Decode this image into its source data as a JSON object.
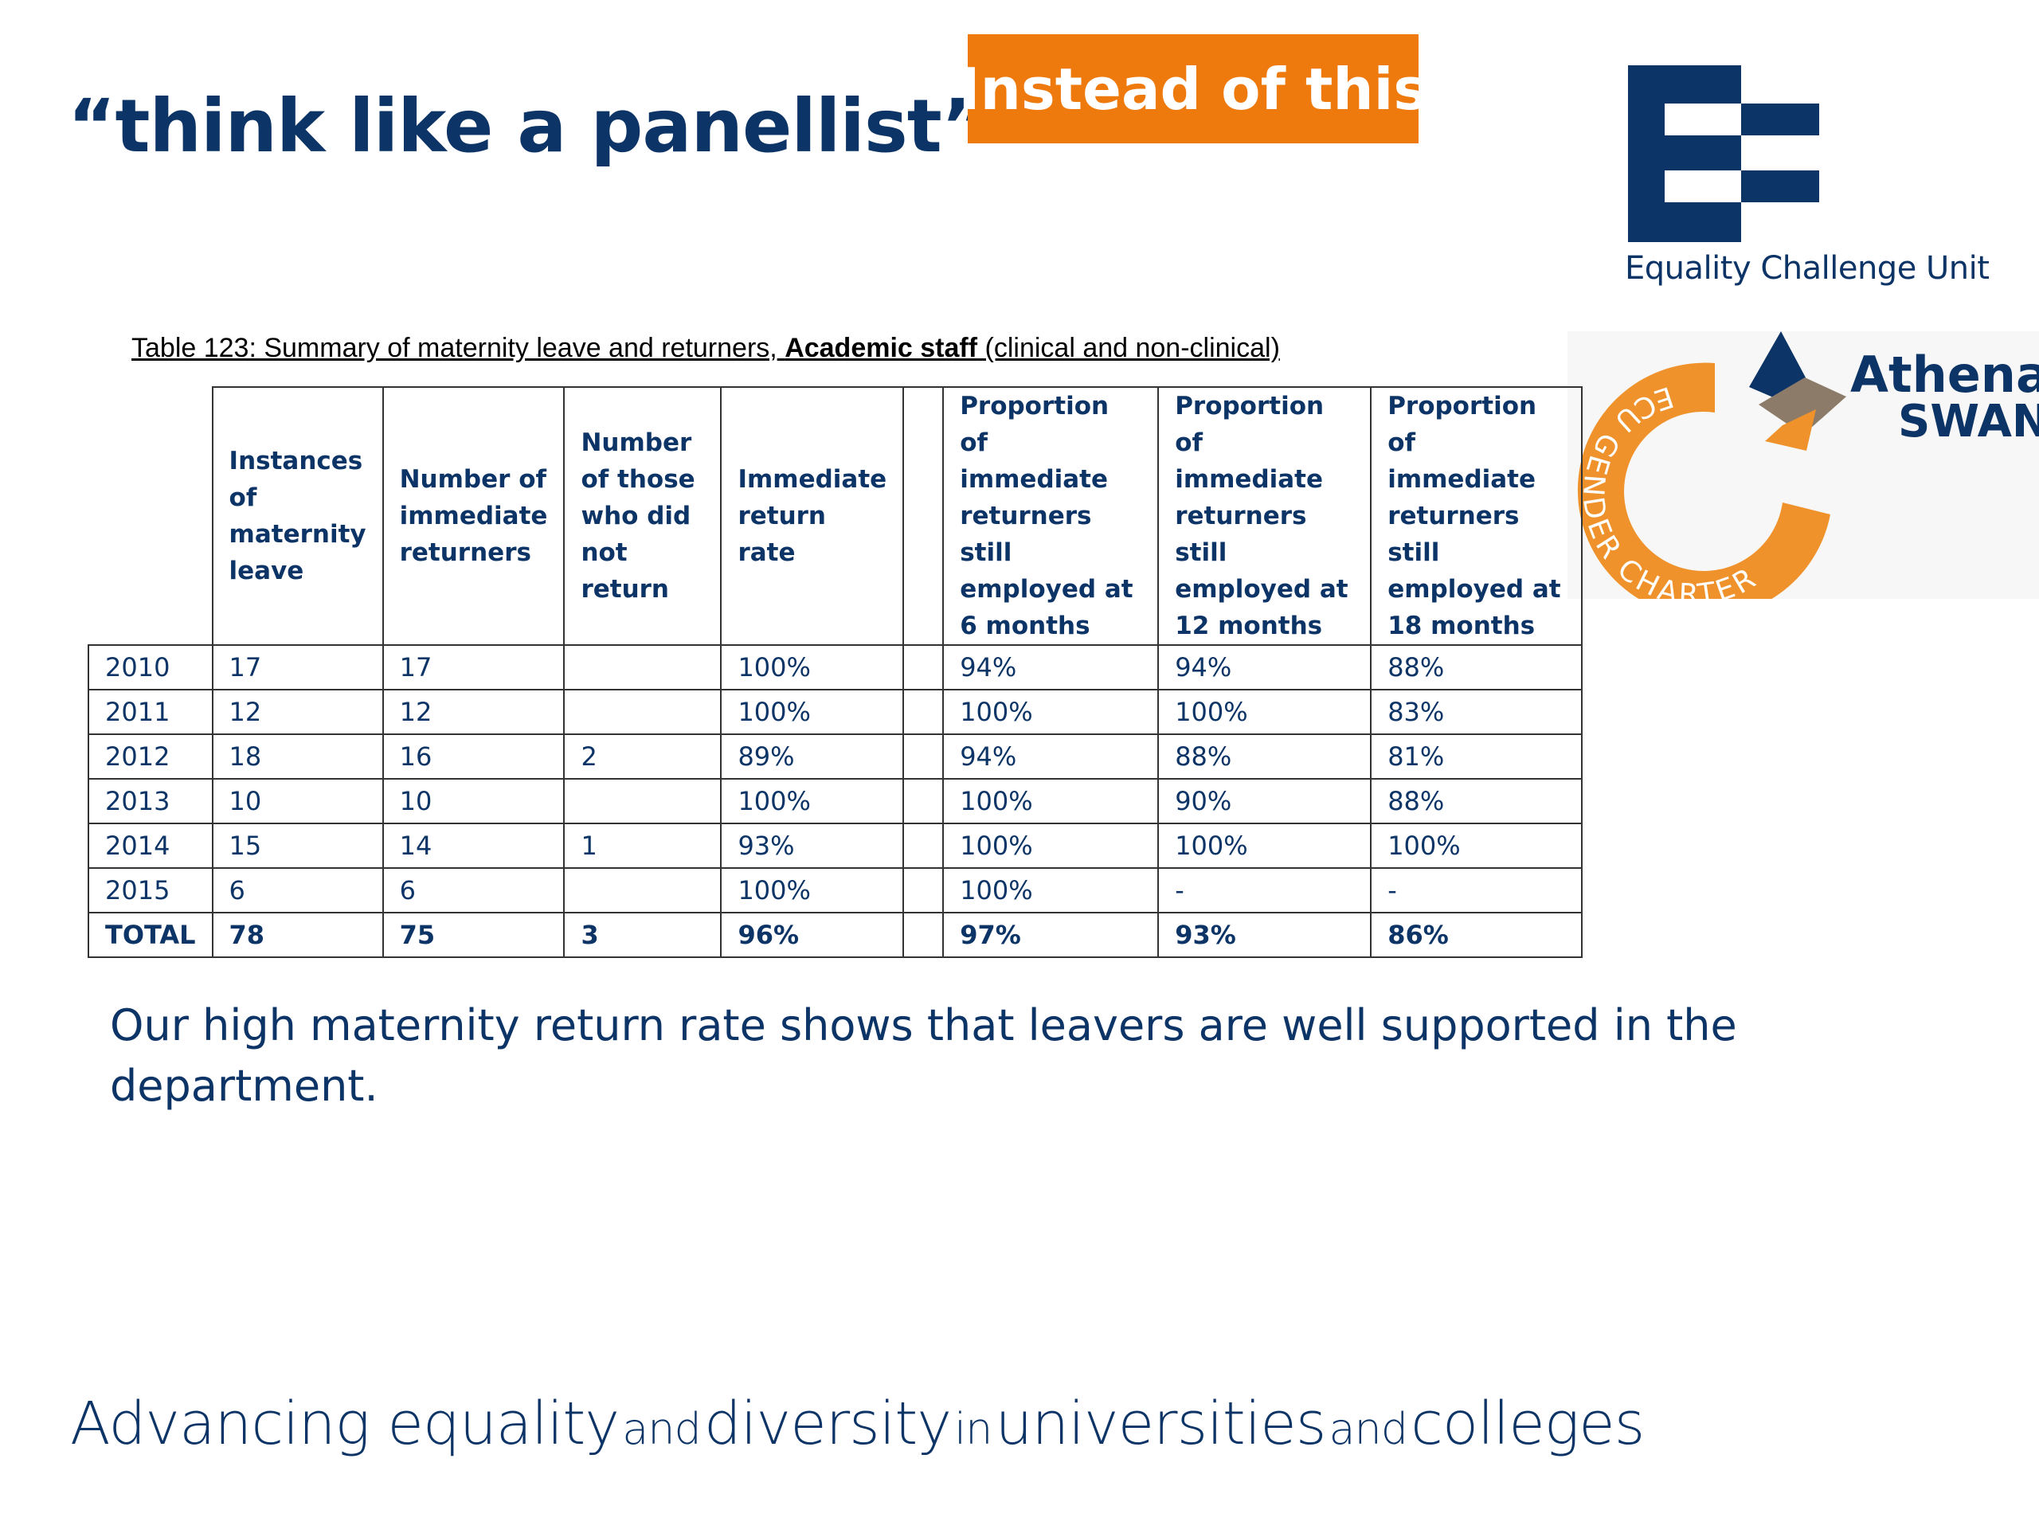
{
  "slide": {
    "title": "“think like a panellist”",
    "badge": "Instead of this",
    "statement": "Our high maternity return rate shows that leavers are well supported in the department.",
    "tagline": {
      "w1": "Advancing equality",
      "w2": "and",
      "w3": "diversity",
      "w4": "in",
      "w5": "universities",
      "w6": "and",
      "w7": "colleges"
    }
  },
  "logos": {
    "ecu": {
      "name": "Equality Challenge Unit",
      "icon": "ecu-mark-icon",
      "color": "#0d3466"
    },
    "athena": {
      "word1": "Athena",
      "word2": "SWAN",
      "ring_text": "ECU GENDER CHARTER",
      "ring_color": "#f0922b",
      "icon": "athena-swan-mark-icon"
    }
  },
  "table": {
    "caption_pre": "Table 123: Summary of maternity leave and returners,",
    "caption_bold": "Academic staff",
    "caption_post": "(clinical and non-clinical)",
    "headers": [
      "",
      "Instances of maternity leave",
      "Number of immediate returners",
      "Number of those who did not return",
      "Immediate return rate",
      "",
      "Proportion of immediate returners still employed at 6 months",
      "Proportion of immediate returners still employed at 12 months",
      "Proportion of immediate returners still employed at 18 months"
    ],
    "rows": [
      [
        "2010",
        "17",
        "17",
        "",
        "100%",
        "",
        "94%",
        "94%",
        "88%"
      ],
      [
        "2011",
        "12",
        "12",
        "",
        "100%",
        "",
        "100%",
        "100%",
        "83%"
      ],
      [
        "2012",
        "18",
        "16",
        "2",
        "89%",
        "",
        "94%",
        "88%",
        "81%"
      ],
      [
        "2013",
        "10",
        "10",
        "",
        "100%",
        "",
        "100%",
        "90%",
        "88%"
      ],
      [
        "2014",
        "15",
        "14",
        "1",
        "93%",
        "",
        "100%",
        "100%",
        "100%"
      ],
      [
        "2015",
        "6",
        "6",
        "",
        "100%",
        "",
        "100%",
        "-",
        "-"
      ],
      [
        "TOTAL",
        "78",
        "75",
        "3",
        "96%",
        "",
        "97%",
        "93%",
        "86%"
      ]
    ]
  },
  "colors": {
    "navy": "#0d3466",
    "orange": "#ee7a0e",
    "ring_orange": "#f0922b",
    "swan_grey": "#8c7b68"
  }
}
